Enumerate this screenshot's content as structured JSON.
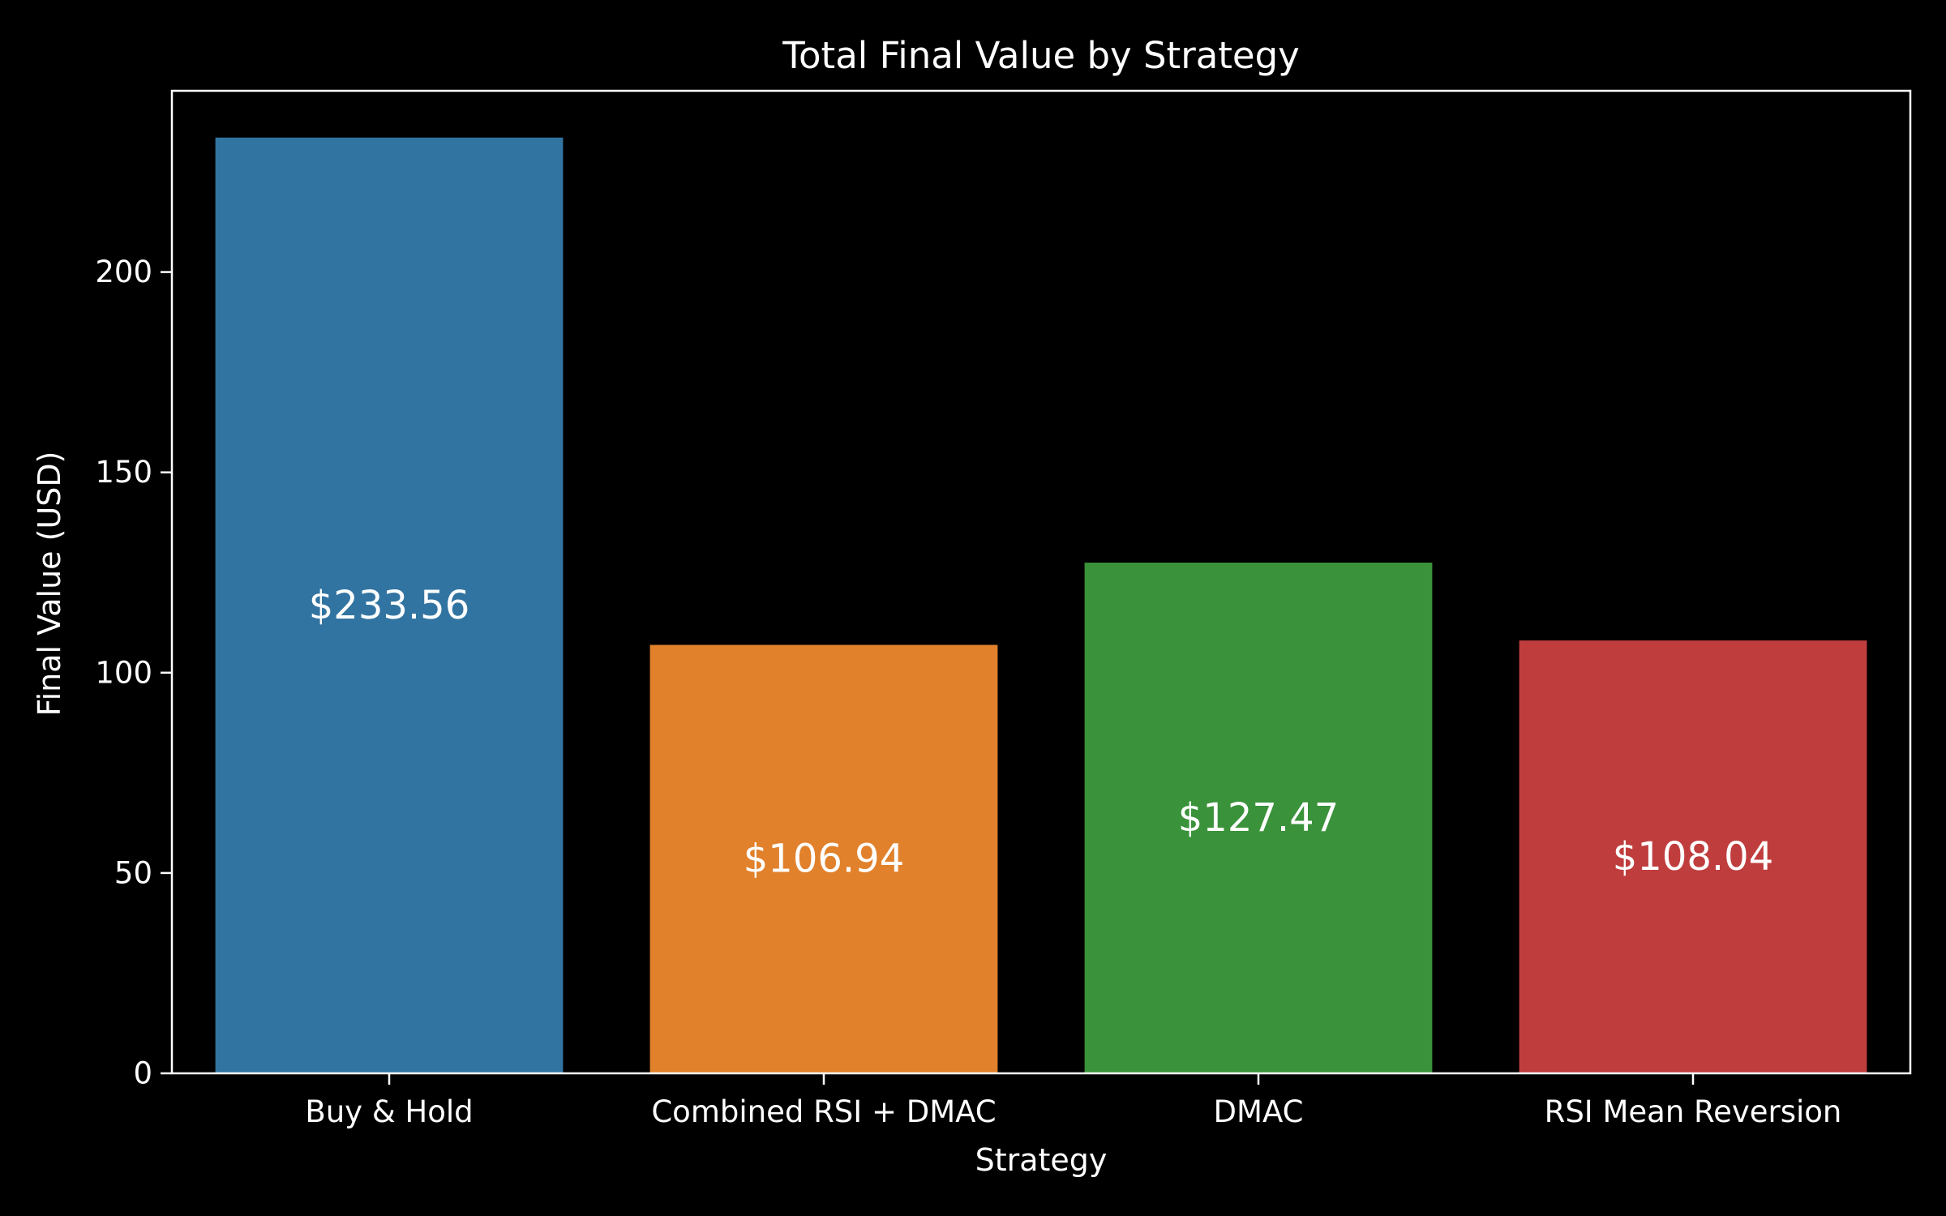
{
  "chart_data": {
    "type": "bar",
    "title": "Total Final Value by Strategy",
    "xlabel": "Strategy",
    "ylabel": "Final Value (USD)",
    "categories": [
      "Buy & Hold",
      "Combined RSI + DMAC",
      "DMAC",
      "RSI Mean Reversion"
    ],
    "values": [
      233.56,
      106.94,
      127.47,
      108.04
    ],
    "data_labels": [
      "$233.56",
      "$106.94",
      "$127.47",
      "$108.04"
    ],
    "colors": [
      "#3274a1",
      "#e1812c",
      "#3a923a",
      "#c03d3e"
    ],
    "ylim": [
      0,
      245.24
    ],
    "yticks": [
      0,
      50,
      100,
      150,
      200
    ],
    "ytick_labels": [
      "0",
      "50",
      "100",
      "150",
      "200"
    ],
    "grid": false,
    "background": "#000000",
    "foreground": "#ffffff"
  }
}
